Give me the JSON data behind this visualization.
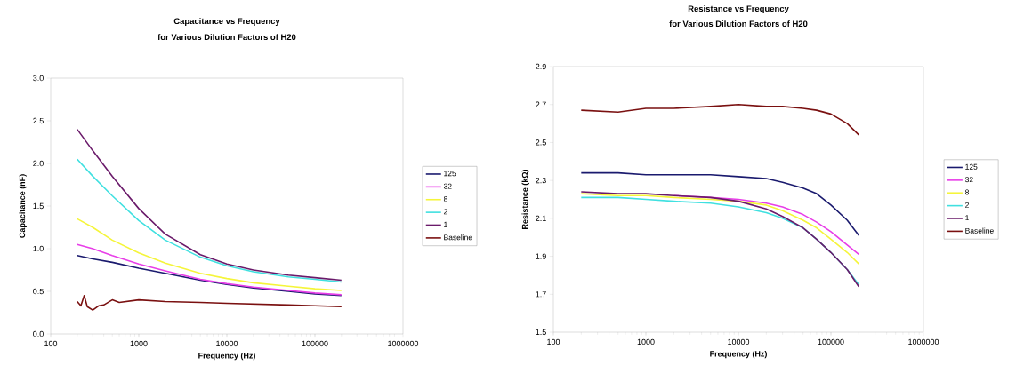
{
  "chart_data": [
    {
      "type": "line",
      "title": "Capacitance vs Frequency",
      "subtitle": "for Various Dilution Factors of H20",
      "xlabel": "Frequency (Hz)",
      "ylabel": "Capacitance (nF)",
      "log": "x",
      "grid": false,
      "legend": "right",
      "x": [
        200,
        300,
        500,
        1000,
        2000,
        5000,
        10000,
        20000,
        50000,
        100000,
        200000
      ],
      "xlim": [
        100,
        1000000
      ],
      "xticks": [
        100,
        1000,
        10000,
        100000,
        1000000
      ],
      "ylim": [
        0,
        3
      ],
      "yticks": [
        {
          "value": 0,
          "label": "0.0"
        },
        0.5,
        {
          "value": 1,
          "label": "1.0"
        },
        1.5,
        {
          "value": 2,
          "label": "2.0"
        },
        2.5,
        {
          "value": 3,
          "label": "3.0"
        }
      ],
      "series": [
        {
          "name": "125",
          "color": "#1a1a6e",
          "values": [
            0.92,
            0.88,
            0.84,
            0.77,
            0.71,
            0.63,
            0.58,
            0.54,
            0.5,
            0.47,
            0.45
          ]
        },
        {
          "name": "32",
          "color": "#e83ee8",
          "values": [
            1.05,
            1.0,
            0.92,
            0.82,
            0.74,
            0.64,
            0.59,
            0.55,
            0.51,
            0.48,
            0.46
          ]
        },
        {
          "name": "8",
          "color": "#f5f53a",
          "values": [
            1.35,
            1.25,
            1.1,
            0.95,
            0.83,
            0.71,
            0.65,
            0.6,
            0.56,
            0.53,
            0.51
          ]
        },
        {
          "name": "2",
          "color": "#40e0e0",
          "values": [
            2.05,
            1.85,
            1.62,
            1.33,
            1.1,
            0.9,
            0.8,
            0.73,
            0.67,
            0.64,
            0.61
          ]
        },
        {
          "name": "1",
          "color": "#6a1a6a",
          "values": [
            2.4,
            2.15,
            1.85,
            1.47,
            1.17,
            0.93,
            0.82,
            0.75,
            0.69,
            0.66,
            0.63
          ]
        },
        {
          "name": "Baseline",
          "color": "#7a1010",
          "x": [
            200,
            220,
            240,
            260,
            300,
            350,
            400,
            500,
            600,
            1000,
            2000,
            5000,
            10000,
            50000,
            100000,
            200000
          ],
          "values": [
            0.38,
            0.33,
            0.45,
            0.32,
            0.28,
            0.33,
            0.34,
            0.4,
            0.37,
            0.4,
            0.38,
            0.37,
            0.36,
            0.34,
            0.33,
            0.32
          ]
        }
      ]
    },
    {
      "type": "line",
      "title": "Resistance vs Frequency",
      "subtitle": "for Various Dilution Factors of H20",
      "xlabel": "Frequency (Hz)",
      "ylabel": "Resistance (kΩ)",
      "log": "x",
      "grid": false,
      "legend": "right",
      "x": [
        200,
        500,
        1000,
        2000,
        5000,
        10000,
        20000,
        30000,
        50000,
        70000,
        100000,
        150000,
        200000
      ],
      "xlim": [
        100,
        1000000
      ],
      "xticks": [
        100,
        1000,
        10000,
        100000,
        1000000
      ],
      "ylim": [
        1.5,
        2.9
      ],
      "yticks": [
        1.5,
        1.7,
        1.9,
        2.1,
        2.3,
        2.5,
        2.7,
        2.9
      ],
      "series": [
        {
          "name": "125",
          "color": "#1a1a6e",
          "values": [
            2.34,
            2.34,
            2.33,
            2.33,
            2.33,
            2.32,
            2.31,
            2.29,
            2.26,
            2.23,
            2.17,
            2.09,
            2.01
          ]
        },
        {
          "name": "32",
          "color": "#e83ee8",
          "values": [
            null,
            null,
            null,
            2.22,
            2.21,
            2.2,
            2.18,
            2.16,
            2.12,
            2.08,
            2.03,
            1.96,
            1.91
          ]
        },
        {
          "name": "8",
          "color": "#f5f53a",
          "values": [
            2.23,
            2.22,
            2.22,
            2.21,
            2.2,
            2.19,
            2.17,
            2.14,
            2.09,
            2.05,
            1.99,
            1.92,
            1.86
          ]
        },
        {
          "name": "2",
          "color": "#40e0e0",
          "values": [
            2.21,
            2.21,
            2.2,
            2.19,
            2.18,
            2.16,
            2.13,
            2.1,
            2.05,
            1.99,
            1.92,
            1.83,
            1.75
          ]
        },
        {
          "name": "1",
          "color": "#6a1a6a",
          "values": [
            2.24,
            2.23,
            2.23,
            2.22,
            2.21,
            2.19,
            2.15,
            2.11,
            2.05,
            1.99,
            1.92,
            1.83,
            1.74
          ]
        },
        {
          "name": "Baseline",
          "color": "#7a1010",
          "values": [
            2.67,
            2.66,
            2.68,
            2.68,
            2.69,
            2.7,
            2.69,
            2.69,
            2.68,
            2.67,
            2.65,
            2.6,
            2.54
          ]
        }
      ]
    }
  ]
}
